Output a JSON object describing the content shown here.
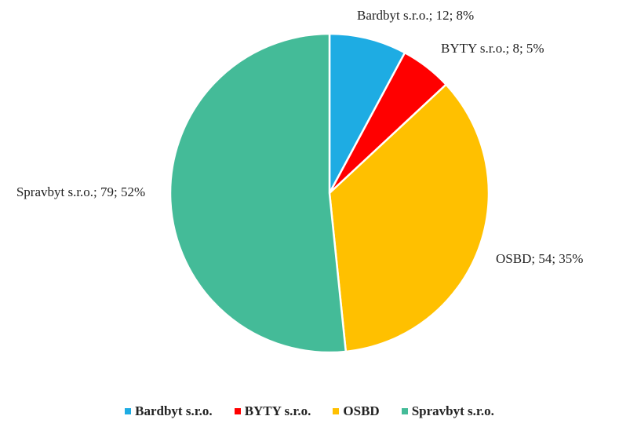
{
  "chart_data": {
    "type": "pie",
    "categories": [
      "Bardbyt s.r.o.",
      "BYTY s.r.o.",
      "OSBD",
      "Spravbyt s.r.o."
    ],
    "values": [
      12,
      8,
      54,
      79
    ],
    "value_labels": [
      "Bardbyt s.r.o.; 12; 8%",
      "BYTY s.r.o.; 8; 5%",
      "OSBD; 54; 35%",
      "Spravbyt s.r.o.; 79; 52%"
    ],
    "colors": [
      "#1eace3",
      "#ff0000",
      "#ffc000",
      "#44bb98"
    ],
    "legend": "bottom"
  }
}
